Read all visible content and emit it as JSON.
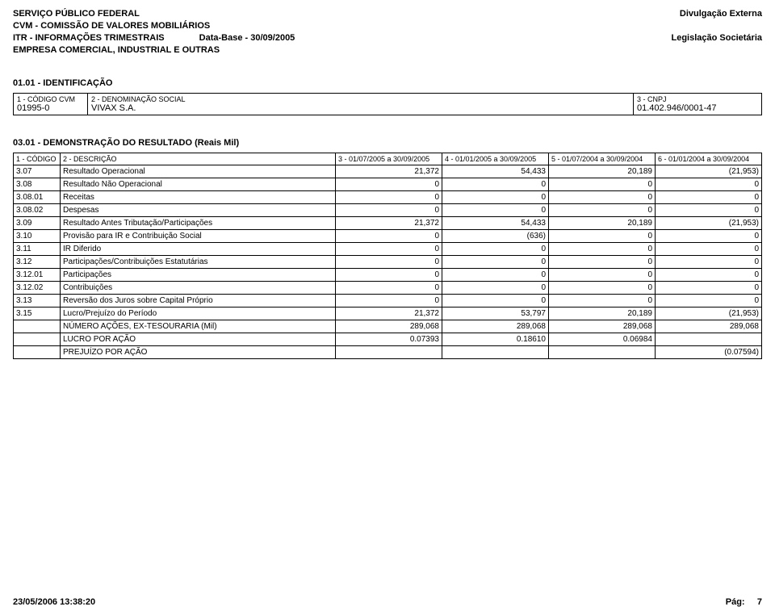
{
  "header": {
    "left": {
      "line1": "SERVIÇO PÚBLICO FEDERAL",
      "line2": "CVM - COMISSÃO DE VALORES MOBILIÁRIOS",
      "line3_left": "ITR - INFORMAÇÕES TRIMESTRAIS",
      "line3_right": "Data-Base - 30/09/2005",
      "line4": "EMPRESA COMERCIAL, INDUSTRIAL E OUTRAS"
    },
    "right": {
      "line1": "Divulgação Externa",
      "line2": "Legislação Societária"
    }
  },
  "section_ident": {
    "title": "01.01 - IDENTIFICAÇÃO",
    "labels": {
      "codigo_cvm": "1 - CÓDIGO CVM",
      "denom": "2 - DENOMINAÇÃO SOCIAL",
      "cnpj": "3 - CNPJ"
    },
    "values": {
      "codigo_cvm": "01995-0",
      "denom": "VIVAX S.A.",
      "cnpj": "01.402.946/0001-47"
    }
  },
  "section_demo": {
    "title": "03.01 - DEMONSTRAÇÃO DO RESULTADO (Reais Mil)",
    "columns": {
      "c0": "1 - CÓDIGO",
      "c1": "2 - DESCRIÇÃO",
      "c2": "3 - 01/07/2005 a 30/09/2005",
      "c3": "4 - 01/01/2005 a 30/09/2005",
      "c4": "5 - 01/07/2004 a 30/09/2004",
      "c5": "6 - 01/01/2004 a 30/09/2004"
    },
    "rows": [
      {
        "code": "3.07",
        "desc": "Resultado Operacional",
        "v1": "21,372",
        "v2": "54,433",
        "v3": "20,189",
        "v4": "(21,953)"
      },
      {
        "code": "3.08",
        "desc": "Resultado Não Operacional",
        "v1": "0",
        "v2": "0",
        "v3": "0",
        "v4": "0"
      },
      {
        "code": "3.08.01",
        "desc": "Receitas",
        "v1": "0",
        "v2": "0",
        "v3": "0",
        "v4": "0"
      },
      {
        "code": "3.08.02",
        "desc": "Despesas",
        "v1": "0",
        "v2": "0",
        "v3": "0",
        "v4": "0"
      },
      {
        "code": "3.09",
        "desc": "Resultado Antes Tributação/Participações",
        "v1": "21,372",
        "v2": "54,433",
        "v3": "20,189",
        "v4": "(21,953)"
      },
      {
        "code": "3.10",
        "desc": "Provisão para IR e Contribuição Social",
        "v1": "0",
        "v2": "(636)",
        "v3": "0",
        "v4": "0"
      },
      {
        "code": "3.11",
        "desc": "IR Diferido",
        "v1": "0",
        "v2": "0",
        "v3": "0",
        "v4": "0"
      },
      {
        "code": "3.12",
        "desc": "Participações/Contribuições Estatutárias",
        "v1": "0",
        "v2": "0",
        "v3": "0",
        "v4": "0"
      },
      {
        "code": "3.12.01",
        "desc": "Participações",
        "v1": "0",
        "v2": "0",
        "v3": "0",
        "v4": "0"
      },
      {
        "code": "3.12.02",
        "desc": "Contribuições",
        "v1": "0",
        "v2": "0",
        "v3": "0",
        "v4": "0"
      },
      {
        "code": "3.13",
        "desc": "Reversão dos Juros sobre Capital Próprio",
        "v1": "0",
        "v2": "0",
        "v3": "0",
        "v4": "0"
      },
      {
        "code": "3.15",
        "desc": "Lucro/Prejuízo do Período",
        "v1": "21,372",
        "v2": "53,797",
        "v3": "20,189",
        "v4": "(21,953)"
      },
      {
        "code": "",
        "desc": "NÚMERO AÇÕES, EX-TESOURARIA (Mil)",
        "v1": "289,068",
        "v2": "289,068",
        "v3": "289,068",
        "v4": "289,068"
      },
      {
        "code": "",
        "desc": "LUCRO POR AÇÃO",
        "v1": "0.07393",
        "v2": "0.18610",
        "v3": "0.06984",
        "v4": ""
      },
      {
        "code": "",
        "desc": "PREJUÍZO POR AÇÃO",
        "v1": "",
        "v2": "",
        "v3": "",
        "v4": "(0.07594)"
      }
    ]
  },
  "footer": {
    "left": "23/05/2006 13:38:20",
    "right_label": "Pág:",
    "right_value": "7"
  }
}
